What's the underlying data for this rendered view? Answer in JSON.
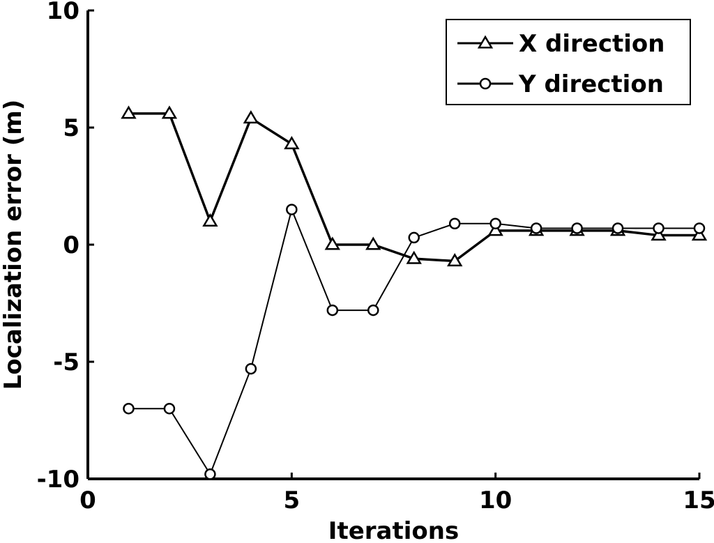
{
  "chart_data": {
    "type": "line",
    "title": "",
    "xlabel": "Iterations",
    "ylabel": "Localization error (m)",
    "xlim": [
      0,
      15
    ],
    "ylim": [
      -10,
      10
    ],
    "xticks": [
      0,
      5,
      10,
      15
    ],
    "yticks": [
      -10,
      -5,
      0,
      5,
      10
    ],
    "xtick_labels": [
      "0",
      "5",
      "10",
      "15"
    ],
    "ytick_labels": [
      "-10",
      "-5",
      "0",
      "5",
      "10"
    ],
    "grid": false,
    "legend_position": "top-right",
    "x": [
      1,
      2,
      3,
      4,
      5,
      6,
      7,
      8,
      9,
      10,
      11,
      12,
      13,
      14,
      15
    ],
    "series": [
      {
        "name": "X direction",
        "marker": "triangle",
        "color": "#000000",
        "values": [
          5.6,
          5.6,
          1.0,
          5.4,
          4.3,
          0.0,
          0.0,
          -0.6,
          -0.7,
          0.6,
          0.6,
          0.6,
          0.6,
          0.4,
          0.4
        ]
      },
      {
        "name": "Y direction",
        "marker": "circle",
        "color": "#000000",
        "values": [
          -7.0,
          -7.0,
          -9.8,
          -5.3,
          1.5,
          -2.8,
          -2.8,
          0.3,
          0.9,
          0.9,
          0.7,
          0.7,
          0.7,
          0.7,
          0.7
        ]
      }
    ]
  }
}
